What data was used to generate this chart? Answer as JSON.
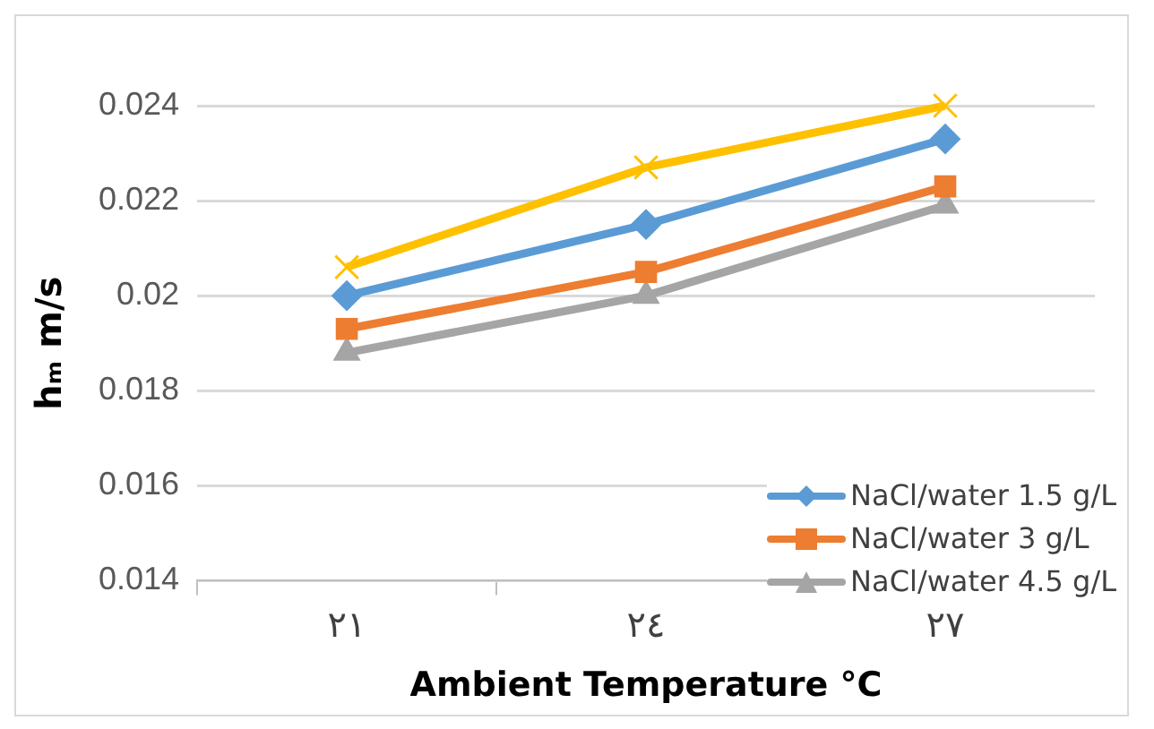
{
  "chart_data": {
    "type": "line",
    "xlabel": "Ambient Temperature °C",
    "ylabel": "hₘ m/s",
    "categories": [
      "٢١",
      "٢٤",
      "٢٧"
    ],
    "series": [
      {
        "name": "NaCl/water 1.5 g/L",
        "color": "#5b9bd5",
        "marker": "diamond",
        "values": [
          0.02,
          0.0215,
          0.0233
        ]
      },
      {
        "name": "NaCl/water 3 g/L",
        "color": "#ed7d31",
        "marker": "square",
        "values": [
          0.0193,
          0.0205,
          0.0223
        ]
      },
      {
        "name": "NaCl/water 4.5 g/L",
        "color": "#a5a5a5",
        "marker": "triangle",
        "values": [
          0.0188,
          0.02,
          0.0219
        ]
      },
      {
        "color": "#ffc000",
        "marker": "cross",
        "values": [
          0.0206,
          0.0227,
          0.024
        ]
      }
    ],
    "ylim": [
      0.014,
      0.024
    ],
    "yticks": [
      0.014,
      0.016,
      0.018,
      0.02,
      0.022,
      0.024
    ],
    "grid": "y",
    "legend": "bottom right"
  }
}
